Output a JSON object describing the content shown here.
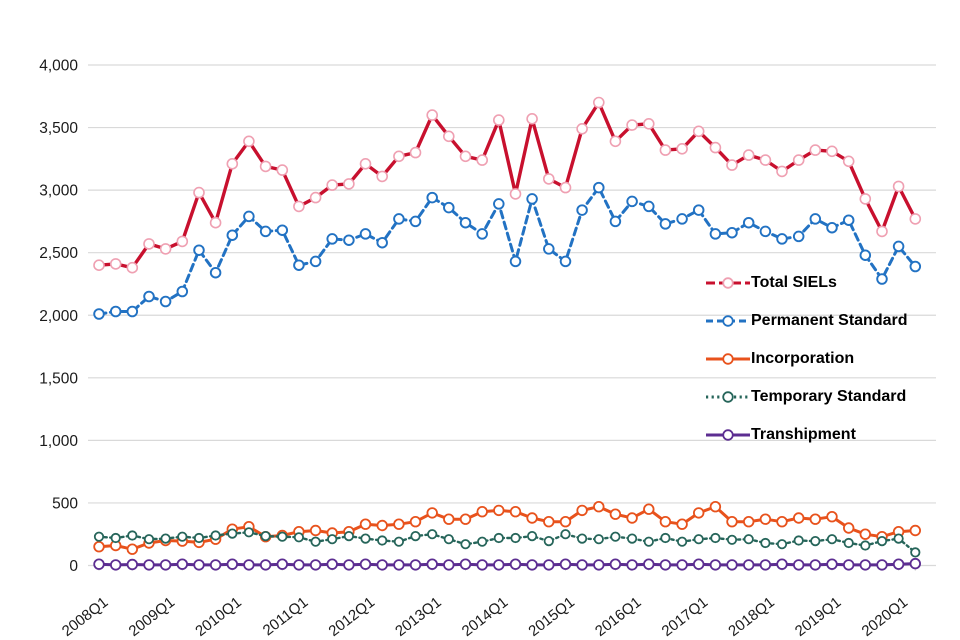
{
  "page": {
    "background": "#FFFFFF",
    "title": ""
  },
  "axes": {
    "y_tick_labels": [
      "0",
      "500",
      "1,000",
      "1,500",
      "2,000",
      "2,500",
      "3,000",
      "3,500",
      "4,000"
    ],
    "x_tick_labels": [
      "2008Q1",
      "2009Q1",
      "2010Q1",
      "2011Q1",
      "2012Q1",
      "2013Q1",
      "2014Q1",
      "2015Q1",
      "2016Q1",
      "2017Q1",
      "2018Q1",
      "2019Q1",
      "2020Q1"
    ]
  },
  "colors": {
    "grid": "#D9D9D9",
    "tick": "#BFBFBF",
    "axis_text": "#1A1A1A",
    "total_siels": "#C8102E",
    "total_siels_marker": "#EFA0B2",
    "permanent_standard": "#2272C3",
    "incorporation": "#E8521C",
    "temporary_standard": "#26655A",
    "transhipment": "#5C2D91"
  },
  "chart_data": {
    "type": "line",
    "title": "",
    "xlabel": "",
    "ylabel": "",
    "ylim": [
      0,
      4000
    ],
    "y_ticks": [
      0,
      500,
      1000,
      1500,
      2000,
      2500,
      3000,
      3500,
      4000
    ],
    "grid": "horizontal",
    "legend_position": "right-middle",
    "x": [
      "2008Q1",
      "2008Q2",
      "2008Q3",
      "2008Q4",
      "2009Q1",
      "2009Q2",
      "2009Q3",
      "2009Q4",
      "2010Q1",
      "2010Q2",
      "2010Q3",
      "2010Q4",
      "2011Q1",
      "2011Q2",
      "2011Q3",
      "2011Q4",
      "2012Q1",
      "2012Q2",
      "2012Q3",
      "2012Q4",
      "2013Q1",
      "2013Q2",
      "2013Q3",
      "2013Q4",
      "2014Q1",
      "2014Q2",
      "2014Q3",
      "2014Q4",
      "2015Q1",
      "2015Q2",
      "2015Q3",
      "2015Q4",
      "2016Q1",
      "2016Q2",
      "2016Q3",
      "2016Q4",
      "2017Q1",
      "2017Q2",
      "2017Q3",
      "2017Q4",
      "2018Q1",
      "2018Q2",
      "2018Q3",
      "2018Q4",
      "2019Q1",
      "2019Q2",
      "2019Q3",
      "2019Q4",
      "2020Q1",
      "2020Q2"
    ],
    "series": [
      {
        "name": "Total SIELs",
        "color": "#C8102E",
        "marker_color": "#EFA0B2",
        "style": "dashed-long",
        "values": [
          2400,
          2410,
          2380,
          2570,
          2530,
          2590,
          2980,
          2740,
          3210,
          3390,
          3190,
          3160,
          2870,
          2940,
          3040,
          3050,
          3210,
          3110,
          3270,
          3300,
          3600,
          3430,
          3270,
          3240,
          3560,
          2970,
          3570,
          3090,
          3020,
          3490,
          3700,
          3390,
          3520,
          3530,
          3320,
          3330,
          3470,
          3340,
          3200,
          3280,
          3240,
          3150,
          3240,
          3320,
          3310,
          3230,
          2930,
          2670,
          3030,
          2770
        ]
      },
      {
        "name": "Permanent Standard",
        "color": "#2272C3",
        "marker_color": "#2272C3",
        "style": "dashed",
        "values": [
          2010,
          2030,
          2030,
          2150,
          2110,
          2190,
          2520,
          2340,
          2640,
          2790,
          2670,
          2680,
          2400,
          2430,
          2610,
          2600,
          2650,
          2580,
          2770,
          2750,
          2940,
          2860,
          2740,
          2650,
          2890,
          2430,
          2930,
          2530,
          2430,
          2840,
          3020,
          2750,
          2910,
          2870,
          2730,
          2770,
          2840,
          2650,
          2660,
          2740,
          2670,
          2610,
          2630,
          2770,
          2700,
          2760,
          2480,
          2290,
          2550,
          2390
        ]
      },
      {
        "name": "Incorporation",
        "color": "#E8521C",
        "marker_color": "#E8521C",
        "style": "solid",
        "values": [
          150,
          160,
          130,
          180,
          200,
          195,
          185,
          210,
          290,
          310,
          230,
          240,
          270,
          280,
          260,
          270,
          330,
          320,
          330,
          350,
          420,
          370,
          370,
          430,
          440,
          430,
          380,
          350,
          350,
          440,
          470,
          410,
          380,
          450,
          350,
          330,
          420,
          470,
          350,
          350,
          370,
          350,
          380,
          370,
          390,
          300,
          250,
          230,
          270,
          280
        ]
      },
      {
        "name": "Temporary Standard",
        "color": "#26655A",
        "marker_color": "#26655A",
        "style": "dotted",
        "values": [
          230,
          220,
          240,
          210,
          215,
          230,
          220,
          240,
          255,
          265,
          235,
          230,
          225,
          190,
          210,
          235,
          215,
          200,
          190,
          235,
          250,
          210,
          170,
          190,
          220,
          220,
          235,
          195,
          250,
          215,
          210,
          230,
          215,
          190,
          220,
          190,
          210,
          220,
          205,
          210,
          180,
          170,
          200,
          195,
          210,
          180,
          160,
          195,
          215,
          105
        ]
      },
      {
        "name": "Transhipment",
        "color": "#5C2D91",
        "marker_color": "#5C2D91",
        "style": "solid",
        "values": [
          10,
          5,
          8,
          5,
          5,
          10,
          5,
          5,
          10,
          5,
          5,
          10,
          5,
          5,
          10,
          5,
          10,
          5,
          5,
          5,
          10,
          5,
          10,
          5,
          5,
          10,
          5,
          5,
          10,
          5,
          5,
          10,
          5,
          10,
          5,
          5,
          10,
          5,
          5,
          5,
          5,
          10,
          5,
          5,
          10,
          5,
          5,
          5,
          10,
          15
        ]
      }
    ]
  }
}
